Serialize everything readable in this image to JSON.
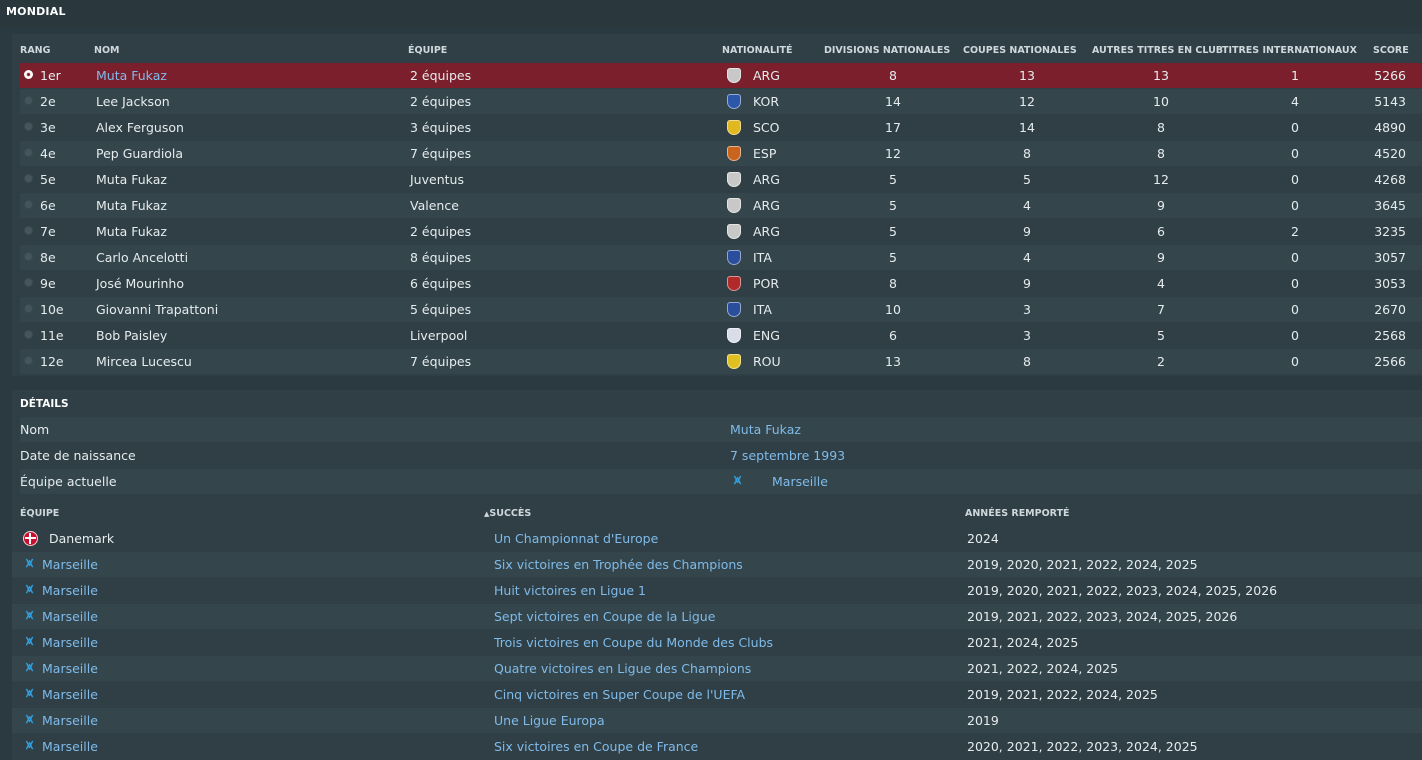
{
  "page_title": "MONDIAL",
  "ranking": {
    "headers": {
      "rank": "RANG",
      "name": "NOM",
      "team": "ÉQUIPE",
      "nationality": "NATIONALITÉ",
      "national_divisions": "DIVISIONS NATIONALES",
      "national_cups": "COUPES NATIONALES",
      "other_club_titles": "AUTRES TITRES EN CLUB",
      "international_titles": "TITRES INTERNATIONAUX",
      "score": "SCORE"
    },
    "rows": [
      {
        "rank": "1er",
        "name": "Muta Fukaz",
        "team": "2 équipes",
        "nat": "ARG",
        "div": "8",
        "cups": "13",
        "other": "13",
        "intl": "1",
        "score": "5266",
        "flag_color": "#c8c8c8",
        "selected": true
      },
      {
        "rank": "2e",
        "name": "Lee Jackson",
        "team": "2 équipes",
        "nat": "KOR",
        "div": "14",
        "cups": "12",
        "other": "10",
        "intl": "4",
        "score": "5143",
        "flag_color": "#2c56a8"
      },
      {
        "rank": "3e",
        "name": "Alex Ferguson",
        "team": "3 équipes",
        "nat": "SCO",
        "div": "17",
        "cups": "14",
        "other": "8",
        "intl": "0",
        "score": "4890",
        "flag_color": "#e0b820"
      },
      {
        "rank": "4e",
        "name": "Pep Guardiola",
        "team": "7 équipes",
        "nat": "ESP",
        "div": "12",
        "cups": "8",
        "other": "8",
        "intl": "0",
        "score": "4520",
        "flag_color": "#c8641e"
      },
      {
        "rank": "5e",
        "name": "Muta Fukaz",
        "team": "Juventus",
        "nat": "ARG",
        "div": "5",
        "cups": "5",
        "other": "12",
        "intl": "0",
        "score": "4268",
        "flag_color": "#c8c8c8"
      },
      {
        "rank": "6e",
        "name": "Muta Fukaz",
        "team": "Valence",
        "nat": "ARG",
        "div": "5",
        "cups": "4",
        "other": "9",
        "intl": "0",
        "score": "3645",
        "flag_color": "#c8c8c8"
      },
      {
        "rank": "7e",
        "name": "Muta Fukaz",
        "team": "2 équipes",
        "nat": "ARG",
        "div": "5",
        "cups": "9",
        "other": "6",
        "intl": "2",
        "score": "3235",
        "flag_color": "#c8c8c8"
      },
      {
        "rank": "8e",
        "name": "Carlo Ancelotti",
        "team": "8 équipes",
        "nat": "ITA",
        "div": "5",
        "cups": "4",
        "other": "9",
        "intl": "0",
        "score": "3057",
        "flag_color": "#2a4e9c"
      },
      {
        "rank": "9e",
        "name": "José Mourinho",
        "team": "6 équipes",
        "nat": "POR",
        "div": "8",
        "cups": "9",
        "other": "4",
        "intl": "0",
        "score": "3053",
        "flag_color": "#b02a2a"
      },
      {
        "rank": "10e",
        "name": "Giovanni Trapattoni",
        "team": "5 équipes",
        "nat": "ITA",
        "div": "10",
        "cups": "3",
        "other": "7",
        "intl": "0",
        "score": "2670",
        "flag_color": "#2a4e9c"
      },
      {
        "rank": "11e",
        "name": "Bob Paisley",
        "team": "Liverpool",
        "nat": "ENG",
        "div": "6",
        "cups": "3",
        "other": "5",
        "intl": "0",
        "score": "2568",
        "flag_color": "#d8dde8"
      },
      {
        "rank": "12e",
        "name": "Mircea Lucescu",
        "team": "7 équipes",
        "nat": "ROU",
        "div": "13",
        "cups": "8",
        "other": "2",
        "intl": "0",
        "score": "2566",
        "flag_color": "#e0c020"
      }
    ]
  },
  "details": {
    "title": "DÉTAILS",
    "fields": [
      {
        "label": "Nom",
        "value": "Muta Fukaz"
      },
      {
        "label": "Date de naissance",
        "value": "7 septembre 1993"
      },
      {
        "label": "Équipe actuelle",
        "value": "Marseille"
      }
    ],
    "honours_headers": {
      "team": "ÉQUIPE",
      "success": "SUCCÈS",
      "years": "ANNÉES REMPORTÉ"
    },
    "honours": [
      {
        "team": "Danemark",
        "success": "Un Championnat d'Europe",
        "years": "2024",
        "icon": "denmark-flag-icon"
      },
      {
        "team": "Marseille",
        "success": "Six victoires en Trophée des Champions",
        "years": "2019, 2020, 2021, 2022, 2024, 2025",
        "icon": "marseille-crest-icon"
      },
      {
        "team": "Marseille",
        "success": "Huit victoires en Ligue 1",
        "years": "2019, 2020, 2021, 2022, 2023, 2024, 2025, 2026",
        "icon": "marseille-crest-icon"
      },
      {
        "team": "Marseille",
        "success": "Sept victoires en Coupe de la Ligue",
        "years": "2019, 2021, 2022, 2023, 2024, 2025, 2026",
        "icon": "marseille-crest-icon"
      },
      {
        "team": "Marseille",
        "success": "Trois victoires en Coupe du Monde des Clubs",
        "years": "2021, 2024, 2025",
        "icon": "marseille-crest-icon"
      },
      {
        "team": "Marseille",
        "success": "Quatre victoires en Ligue des Champions",
        "years": "2021, 2022, 2024, 2025",
        "icon": "marseille-crest-icon"
      },
      {
        "team": "Marseille",
        "success": "Cinq victoires en Super Coupe de l'UEFA",
        "years": "2019, 2021, 2022, 2024, 2025",
        "icon": "marseille-crest-icon"
      },
      {
        "team": "Marseille",
        "success": "Une Ligue Europa",
        "years": "2019",
        "icon": "marseille-crest-icon"
      },
      {
        "team": "Marseille",
        "success": "Six victoires en Coupe de France",
        "years": "2020, 2021, 2022, 2023, 2024, 2025",
        "icon": "marseille-crest-icon"
      }
    ]
  },
  "colors": {
    "selected_row": "#7a1f2b",
    "link": "#7fbbea",
    "panel": "#2f3f45"
  }
}
